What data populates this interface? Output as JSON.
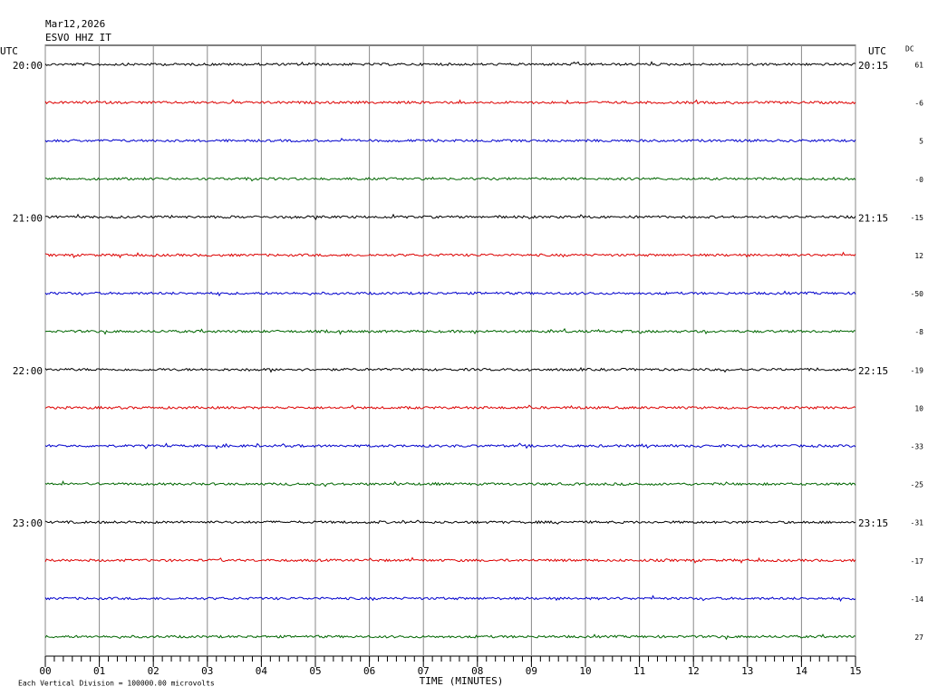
{
  "chart_data": {
    "type": "helicorder",
    "date": "Mar12,2026",
    "station": "ESVO HHZ IT",
    "left_unit": "UTC",
    "right_unit": "UTC",
    "dc_header": "DC",
    "xlabel": "TIME (MINUTES)",
    "footer": "Each Vertical Division = 100000.00 microvolts",
    "xlim": [
      0,
      15
    ],
    "xticks": [
      {
        "value": 0,
        "label": "00"
      },
      {
        "value": 1,
        "label": "01"
      },
      {
        "value": 2,
        "label": "02"
      },
      {
        "value": 3,
        "label": "03"
      },
      {
        "value": 4,
        "label": "04"
      },
      {
        "value": 5,
        "label": "05"
      },
      {
        "value": 6,
        "label": "06"
      },
      {
        "value": 7,
        "label": "07"
      },
      {
        "value": 8,
        "label": "08"
      },
      {
        "value": 9,
        "label": "09"
      },
      {
        "value": 10,
        "label": "10"
      },
      {
        "value": 11,
        "label": "11"
      },
      {
        "value": 12,
        "label": "12"
      },
      {
        "value": 13,
        "label": "13"
      },
      {
        "value": 14,
        "label": "14"
      },
      {
        "value": 15,
        "label": "15"
      }
    ],
    "colors": [
      "#000000",
      "#dd0000",
      "#0000cc",
      "#006600"
    ],
    "rows": [
      {
        "left": "20:00",
        "right": "20:15",
        "dc": "61"
      },
      {
        "left": null,
        "right": null,
        "dc": "-6"
      },
      {
        "left": null,
        "right": null,
        "dc": "5"
      },
      {
        "left": null,
        "right": null,
        "dc": "-0"
      },
      {
        "left": "21:00",
        "right": "21:15",
        "dc": "-15"
      },
      {
        "left": null,
        "right": null,
        "dc": "12"
      },
      {
        "left": null,
        "right": null,
        "dc": "-50"
      },
      {
        "left": null,
        "right": null,
        "dc": "-8"
      },
      {
        "left": "22:00",
        "right": "22:15",
        "dc": "-19"
      },
      {
        "left": null,
        "right": null,
        "dc": "10"
      },
      {
        "left": null,
        "right": null,
        "dc": "-33"
      },
      {
        "left": null,
        "right": null,
        "dc": "-25"
      },
      {
        "left": "23:00",
        "right": "23:15",
        "dc": "-31"
      },
      {
        "left": null,
        "right": null,
        "dc": "-17"
      },
      {
        "left": null,
        "right": null,
        "dc": "-14"
      },
      {
        "left": null,
        "right": null,
        "dc": "27"
      }
    ]
  }
}
